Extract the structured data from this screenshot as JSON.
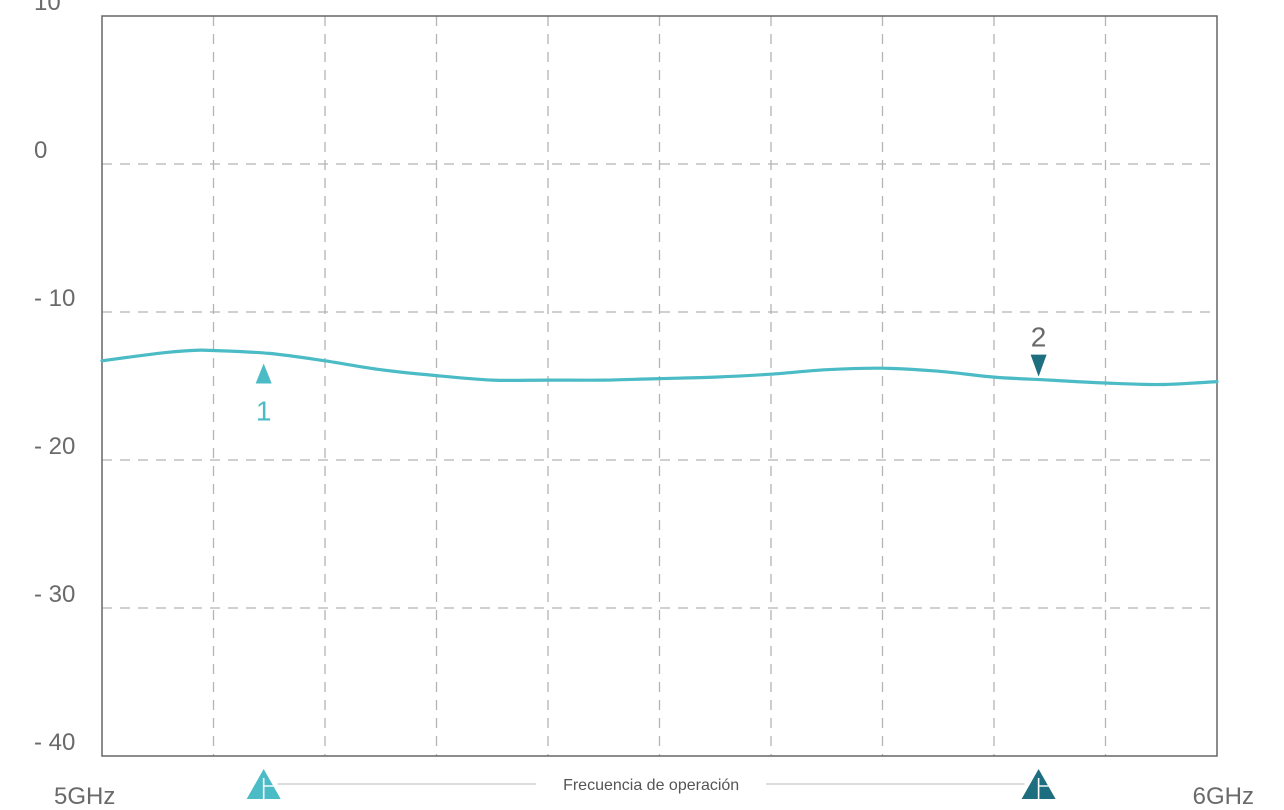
{
  "chart_data": {
    "type": "line",
    "title": "",
    "xlabel": "Frecuencia de operación",
    "ylabel": "",
    "x_start_label": "5GHz",
    "x_end_label": "6GHz",
    "xlim": [
      5.0,
      6.0
    ],
    "ylim": [
      -40,
      10
    ],
    "y_ticks": [
      10,
      0,
      -10,
      -20,
      -30,
      -40
    ],
    "y_tick_labels": [
      "10",
      "0",
      "- 10",
      "- 20",
      "- 30",
      "- 40"
    ],
    "x_grid_count": 10,
    "grid": true,
    "series": [
      {
        "color": "#4bbbc6",
        "x": [
          5.0,
          5.05,
          5.08,
          5.1,
          5.15,
          5.2,
          5.25,
          5.3,
          5.35,
          5.4,
          5.45,
          5.5,
          5.55,
          5.6,
          5.65,
          5.7,
          5.75,
          5.8,
          5.85,
          5.9,
          5.95,
          6.0
        ],
        "y": [
          -13.3,
          -12.8,
          -12.6,
          -12.6,
          -12.8,
          -13.3,
          -13.9,
          -14.3,
          -14.6,
          -14.6,
          -14.6,
          -14.5,
          -14.4,
          -14.2,
          -13.9,
          -13.8,
          -14.0,
          -14.4,
          -14.6,
          -14.8,
          -14.9,
          -14.7
        ]
      }
    ],
    "markers": [
      {
        "label": "1",
        "x": 5.145,
        "y": -12.8,
        "direction": "up",
        "color": "#4bbbc6"
      },
      {
        "label": "2",
        "x": 5.84,
        "y": -14.5,
        "direction": "down",
        "color": "#1d6f80"
      }
    ],
    "band": {
      "label": "Frecuencia de operación",
      "x_start": 5.145,
      "x_end": 5.84
    }
  }
}
